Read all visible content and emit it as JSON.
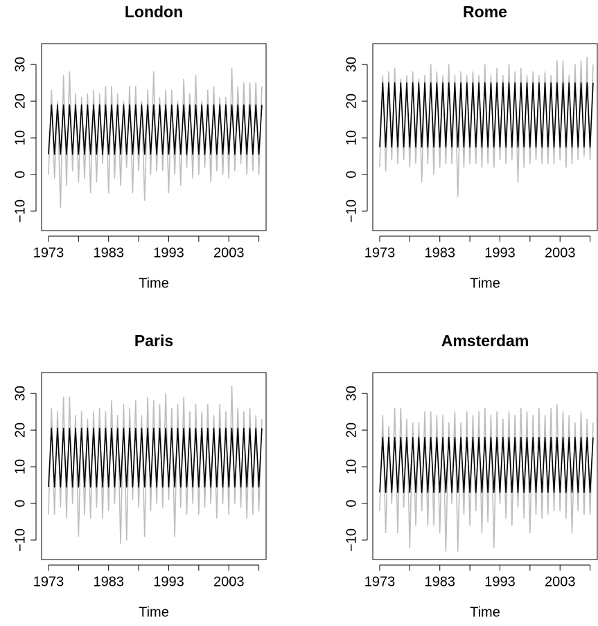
{
  "chart_data": [
    {
      "type": "line",
      "title": "London",
      "xlabel": "Time",
      "xlim": [
        1971.85,
        2009.2
      ],
      "ylim": [
        -15.3,
        35.7
      ],
      "xticks": [
        1973,
        {
          "value": 1978,
          "label": null
        },
        1983,
        {
          "value": 1988,
          "label": null
        },
        1993,
        {
          "value": 1998,
          "label": null
        },
        2003,
        {
          "value": 2008,
          "label": null
        }
      ],
      "yticks": [
        {
          "value": -10,
          "label": "−10"
        },
        0,
        10,
        20,
        30
      ],
      "x": [
        1973,
        1973.5,
        1974,
        1974.5,
        1975,
        1975.5,
        1976,
        1976.5,
        1977,
        1977.5,
        1978,
        1978.5,
        1979,
        1979.5,
        1980,
        1980.5,
        1981,
        1981.5,
        1982,
        1982.5,
        1983,
        1983.5,
        1984,
        1984.5,
        1985,
        1985.5,
        1986,
        1986.5,
        1987,
        1987.5,
        1988,
        1988.5,
        1989,
        1989.5,
        1990,
        1990.5,
        1991,
        1991.5,
        1992,
        1992.5,
        1993,
        1993.5,
        1994,
        1994.5,
        1995,
        1995.5,
        1996,
        1996.5,
        1997,
        1997.5,
        1998,
        1998.5,
        1999,
        1999.5,
        2000,
        2000.5,
        2001,
        2001.5,
        2002,
        2002.5,
        2003,
        2003.5,
        2004,
        2004.5,
        2005,
        2005.5,
        2006,
        2006.5,
        2007,
        2007.5,
        2008,
        2008.5
      ],
      "series": [
        {
          "color": "#bebebe",
          "values": [
            0,
            23,
            -1,
            20,
            -9,
            27,
            -3,
            28,
            1,
            22,
            -2,
            21,
            -1,
            22,
            -5,
            23,
            -2,
            22,
            3,
            24,
            -5,
            24,
            -1,
            22,
            -3,
            20,
            2,
            24,
            -5,
            24,
            1,
            20,
            -7,
            23,
            0,
            28,
            1,
            21,
            1,
            23,
            -5,
            23,
            0,
            20,
            -3,
            26,
            2,
            22,
            -1,
            27,
            0,
            20,
            2,
            23,
            -2,
            24,
            1,
            21,
            0,
            21,
            -1,
            29,
            1,
            24,
            3,
            25,
            0,
            25,
            1,
            25,
            0,
            24
          ]
        },
        {
          "color": "#000000",
          "values": [
            5.5,
            19,
            5.5,
            19,
            5.5,
            19,
            5.5,
            19,
            5.5,
            19,
            5.5,
            19,
            5.5,
            19,
            5.5,
            19,
            5.5,
            19,
            5.5,
            19,
            5.5,
            19,
            5.5,
            19,
            5.5,
            19,
            5.5,
            19,
            5.5,
            19,
            5.5,
            19,
            5.5,
            19,
            5.5,
            19,
            5.5,
            19,
            5.5,
            19,
            5.5,
            19,
            5.5,
            19,
            5.5,
            19,
            5.5,
            19,
            5.5,
            19,
            5.5,
            19,
            5.5,
            19,
            5.5,
            19,
            5.5,
            19,
            5.5,
            19,
            5.5,
            19,
            5.5,
            19,
            5.5,
            19,
            5.5,
            19,
            5.5,
            19,
            5.5,
            19
          ]
        }
      ]
    },
    {
      "type": "line",
      "title": "Rome",
      "xlabel": "Time",
      "xlim": [
        1971.85,
        2009.2
      ],
      "ylim": [
        -15.3,
        35.7
      ],
      "xticks": [
        1973,
        {
          "value": 1978,
          "label": null
        },
        1983,
        {
          "value": 1988,
          "label": null
        },
        1993,
        {
          "value": 1998,
          "label": null
        },
        2003,
        {
          "value": 2008,
          "label": null
        }
      ],
      "yticks": [
        {
          "value": -10,
          "label": "−10"
        },
        0,
        10,
        20,
        30
      ],
      "x": [
        1973,
        1973.5,
        1974,
        1974.5,
        1975,
        1975.5,
        1976,
        1976.5,
        1977,
        1977.5,
        1978,
        1978.5,
        1979,
        1979.5,
        1980,
        1980.5,
        1981,
        1981.5,
        1982,
        1982.5,
        1983,
        1983.5,
        1984,
        1984.5,
        1985,
        1985.5,
        1986,
        1986.5,
        1987,
        1987.5,
        1988,
        1988.5,
        1989,
        1989.5,
        1990,
        1990.5,
        1991,
        1991.5,
        1992,
        1992.5,
        1993,
        1993.5,
        1994,
        1994.5,
        1995,
        1995.5,
        1996,
        1996.5,
        1997,
        1997.5,
        1998,
        1998.5,
        1999,
        1999.5,
        2000,
        2000.5,
        2001,
        2001.5,
        2002,
        2002.5,
        2003,
        2003.5,
        2004,
        2004.5,
        2005,
        2005.5,
        2006,
        2006.5,
        2007,
        2007.5,
        2008,
        2008.5
      ],
      "series": [
        {
          "color": "#bebebe",
          "values": [
            2,
            27,
            1,
            28,
            4,
            29,
            3,
            26,
            4,
            27,
            2,
            28,
            3,
            26,
            -2,
            27,
            3,
            30,
            0,
            28,
            2,
            27,
            3,
            30,
            3,
            27,
            -6,
            28,
            2,
            27,
            3,
            28,
            3,
            27,
            2,
            30,
            3,
            27,
            2,
            29,
            4,
            27,
            3,
            30,
            4,
            28,
            -2,
            29,
            2,
            27,
            3,
            28,
            4,
            27,
            3,
            28,
            3,
            27,
            3,
            31,
            4,
            31,
            2,
            27,
            3,
            30,
            4,
            31,
            5,
            32,
            4,
            30
          ]
        },
        {
          "color": "#000000",
          "values": [
            7.5,
            25,
            7.5,
            25,
            7.5,
            25,
            7.5,
            25,
            7.5,
            25,
            7.5,
            25,
            7.5,
            25,
            7.5,
            25,
            7.5,
            25,
            7.5,
            25,
            7.5,
            25,
            7.5,
            25,
            7.5,
            25,
            7.5,
            25,
            7.5,
            25,
            7.5,
            25,
            7.5,
            25,
            7.5,
            25,
            7.5,
            25,
            7.5,
            25,
            7.5,
            25,
            7.5,
            25,
            7.5,
            25,
            7.5,
            25,
            7.5,
            25,
            7.5,
            25,
            7.5,
            25,
            7.5,
            25,
            7.5,
            25,
            7.5,
            25,
            7.5,
            25,
            7.5,
            25,
            7.5,
            25,
            7.5,
            25,
            7.5,
            25,
            7.5,
            25
          ]
        }
      ]
    },
    {
      "type": "line",
      "title": "Paris",
      "xlabel": "Time",
      "xlim": [
        1971.85,
        2009.2
      ],
      "ylim": [
        -15.3,
        35.7
      ],
      "xticks": [
        1973,
        {
          "value": 1978,
          "label": null
        },
        1983,
        {
          "value": 1988,
          "label": null
        },
        1993,
        {
          "value": 1998,
          "label": null
        },
        2003,
        {
          "value": 2008,
          "label": null
        }
      ],
      "yticks": [
        {
          "value": -10,
          "label": "−10"
        },
        0,
        10,
        20,
        30
      ],
      "x": [
        1973,
        1973.5,
        1974,
        1974.5,
        1975,
        1975.5,
        1976,
        1976.5,
        1977,
        1977.5,
        1978,
        1978.5,
        1979,
        1979.5,
        1980,
        1980.5,
        1981,
        1981.5,
        1982,
        1982.5,
        1983,
        1983.5,
        1984,
        1984.5,
        1985,
        1985.5,
        1986,
        1986.5,
        1987,
        1987.5,
        1988,
        1988.5,
        1989,
        1989.5,
        1990,
        1990.5,
        1991,
        1991.5,
        1992,
        1992.5,
        1993,
        1993.5,
        1994,
        1994.5,
        1995,
        1995.5,
        1996,
        1996.5,
        1997,
        1997.5,
        1998,
        1998.5,
        1999,
        1999.5,
        2000,
        2000.5,
        2001,
        2001.5,
        2002,
        2002.5,
        2003,
        2003.5,
        2004,
        2004.5,
        2005,
        2005.5,
        2006,
        2006.5,
        2007,
        2007.5,
        2008,
        2008.5
      ],
      "series": [
        {
          "color": "#bebebe",
          "values": [
            -3,
            26,
            -3,
            25,
            -1,
            29,
            -4,
            29,
            0,
            24,
            -9,
            25,
            -3,
            23,
            -4,
            25,
            -1,
            26,
            -4,
            25,
            -2,
            28,
            0,
            24,
            -11,
            27,
            -10,
            26,
            1,
            28,
            -1,
            24,
            -9,
            29,
            -2,
            28,
            0,
            27,
            -1,
            30,
            1,
            26,
            -9,
            27,
            -1,
            29,
            -3,
            25,
            0,
            27,
            -3,
            25,
            -1,
            27,
            0,
            24,
            -4,
            27,
            0,
            25,
            -3,
            32,
            0,
            26,
            -1,
            25,
            -4,
            26,
            -3,
            24,
            -2,
            23
          ]
        },
        {
          "color": "#000000",
          "values": [
            4.5,
            20.5,
            4.5,
            20.5,
            4.5,
            20.5,
            4.5,
            20.5,
            4.5,
            20.5,
            4.5,
            20.5,
            4.5,
            20.5,
            4.5,
            20.5,
            4.5,
            20.5,
            4.5,
            20.5,
            4.5,
            20.5,
            4.5,
            20.5,
            4.5,
            20.5,
            4.5,
            20.5,
            4.5,
            20.5,
            4.5,
            20.5,
            4.5,
            20.5,
            4.5,
            20.5,
            4.5,
            20.5,
            4.5,
            20.5,
            4.5,
            20.5,
            4.5,
            20.5,
            4.5,
            20.5,
            4.5,
            20.5,
            4.5,
            20.5,
            4.5,
            20.5,
            4.5,
            20.5,
            4.5,
            20.5,
            4.5,
            20.5,
            4.5,
            20.5,
            4.5,
            20.5,
            4.5,
            20.5,
            4.5,
            20.5,
            4.5,
            20.5,
            4.5,
            20.5,
            4.5,
            20.5
          ]
        }
      ]
    },
    {
      "type": "line",
      "title": "Amsterdam",
      "xlabel": "Time",
      "xlim": [
        1971.85,
        2009.2
      ],
      "ylim": [
        -15.3,
        35.7
      ],
      "xticks": [
        1973,
        {
          "value": 1978,
          "label": null
        },
        1983,
        {
          "value": 1988,
          "label": null
        },
        1993,
        {
          "value": 1998,
          "label": null
        },
        2003,
        {
          "value": 2008,
          "label": null
        }
      ],
      "yticks": [
        {
          "value": -10,
          "label": "−10"
        },
        0,
        10,
        20,
        30
      ],
      "x": [
        1973,
        1973.5,
        1974,
        1974.5,
        1975,
        1975.5,
        1976,
        1976.5,
        1977,
        1977.5,
        1978,
        1978.5,
        1979,
        1979.5,
        1980,
        1980.5,
        1981,
        1981.5,
        1982,
        1982.5,
        1983,
        1983.5,
        1984,
        1984.5,
        1985,
        1985.5,
        1986,
        1986.5,
        1987,
        1987.5,
        1988,
        1988.5,
        1989,
        1989.5,
        1990,
        1990.5,
        1991,
        1991.5,
        1992,
        1992.5,
        1993,
        1993.5,
        1994,
        1994.5,
        1995,
        1995.5,
        1996,
        1996.5,
        1997,
        1997.5,
        1998,
        1998.5,
        1999,
        1999.5,
        2000,
        2000.5,
        2001,
        2001.5,
        2002,
        2002.5,
        2003,
        2003.5,
        2004,
        2004.5,
        2005,
        2005.5,
        2006,
        2006.5,
        2007,
        2007.5,
        2008,
        2008.5
      ],
      "series": [
        {
          "color": "#bebebe",
          "values": [
            -2,
            24,
            -8,
            21,
            0,
            26,
            -8,
            26,
            -1,
            23,
            -12,
            22,
            -6,
            22,
            -2,
            25,
            -6,
            25,
            -6,
            24,
            -8,
            24,
            -13,
            22,
            0,
            25,
            -13,
            22,
            -3,
            25,
            -6,
            24,
            -2,
            25,
            -8,
            26,
            -5,
            24,
            -12,
            25,
            0,
            23,
            -4,
            25,
            -6,
            24,
            -1,
            26,
            -4,
            25,
            -8,
            24,
            -3,
            26,
            -4,
            24,
            -3,
            26,
            -2,
            27,
            -2,
            25,
            -4,
            24,
            -8,
            22,
            -2,
            25,
            -3,
            23,
            -3,
            22
          ]
        },
        {
          "color": "#000000",
          "values": [
            3,
            18,
            3,
            18,
            3,
            18,
            3,
            18,
            3,
            18,
            3,
            18,
            3,
            18,
            3,
            18,
            3,
            18,
            3,
            18,
            3,
            18,
            3,
            18,
            3,
            18,
            3,
            18,
            3,
            18,
            3,
            18,
            3,
            18,
            3,
            18,
            3,
            18,
            3,
            18,
            3,
            18,
            3,
            18,
            3,
            18,
            3,
            18,
            3,
            18,
            3,
            18,
            3,
            18,
            3,
            18,
            3,
            18,
            3,
            18,
            3,
            18,
            3,
            18,
            3,
            18,
            3,
            18,
            3,
            18,
            3,
            18
          ]
        }
      ]
    }
  ]
}
